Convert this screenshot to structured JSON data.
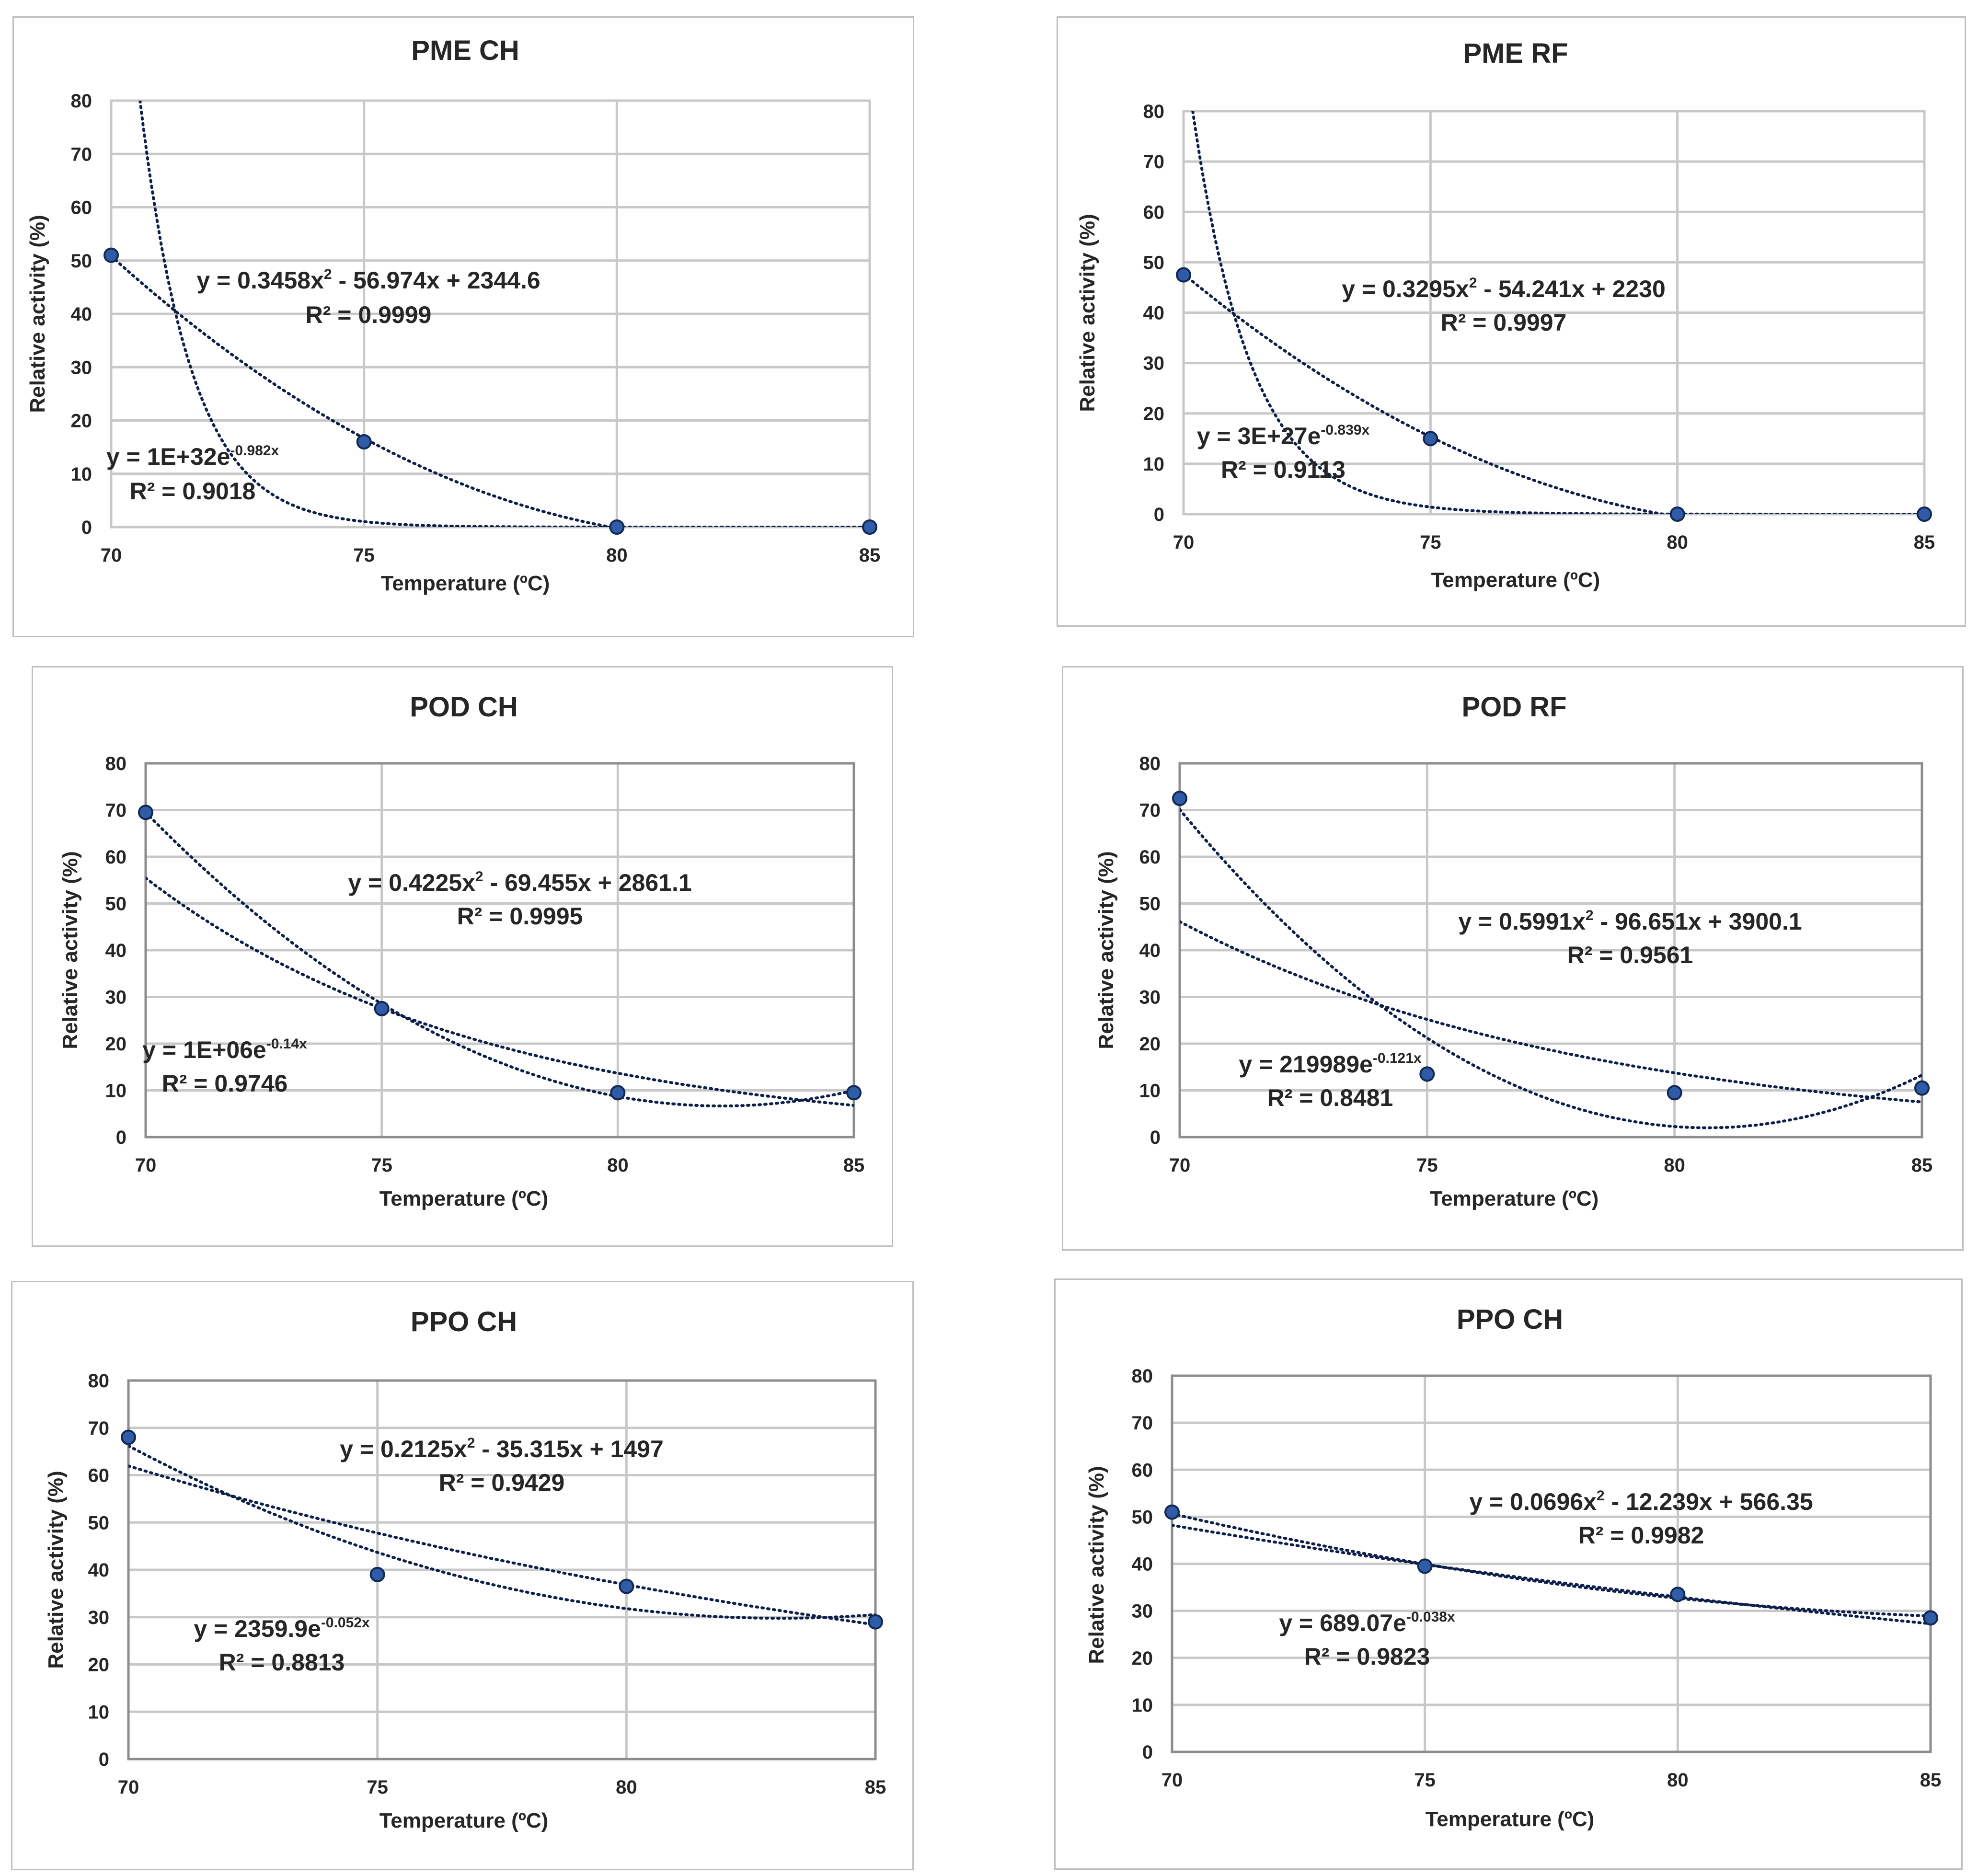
{
  "chart_data": [
    {
      "type": "scatter",
      "title": "PME CH",
      "xlabel": "Temperature (ºC)",
      "ylabel": "Relative activity (%)",
      "xlim": [
        70,
        85
      ],
      "ylim": [
        0,
        80
      ],
      "x_ticks": [
        "70",
        "75",
        "80",
        "85"
      ],
      "y_ticks": [
        "0",
        "10",
        "20",
        "30",
        "40",
        "50",
        "60",
        "70",
        "80"
      ],
      "grid": true,
      "series": [
        {
          "name": "PME CH",
          "x": [
            70,
            75,
            80,
            85
          ],
          "y": [
            51,
            16,
            0,
            0
          ]
        }
      ],
      "trendlines": [
        {
          "kind": "poly",
          "coef": [
            0.3458,
            -56.974,
            2344.6
          ],
          "eq_text": [
            "y = 0.3458x",
            "2",
            " - 56.974x + 2344.6"
          ],
          "r2_text": "R² = 0.9999"
        },
        {
          "kind": "exp",
          "a": 1e+32,
          "b": -0.982,
          "eq_text": [
            "y = 1E+32e",
            "-0.982x",
            ""
          ],
          "r2_text": "R² = 0.9018"
        }
      ]
    },
    {
      "type": "scatter",
      "title": "PME RF",
      "xlabel": "Temperature (ºC)",
      "ylabel": "Relative activity (%)",
      "xlim": [
        70,
        85
      ],
      "ylim": [
        0,
        80
      ],
      "x_ticks": [
        "70",
        "75",
        "80",
        "85"
      ],
      "y_ticks": [
        "0",
        "10",
        "20",
        "30",
        "40",
        "50",
        "60",
        "70",
        "80"
      ],
      "grid": true,
      "series": [
        {
          "name": "PME RF",
          "x": [
            70,
            75,
            80,
            85
          ],
          "y": [
            47.5,
            15,
            0,
            0
          ]
        }
      ],
      "trendlines": [
        {
          "kind": "poly",
          "coef": [
            0.3295,
            -54.241,
            2230
          ],
          "eq_text": [
            "y = 0.3295x",
            "2",
            " - 54.241x + 2230"
          ],
          "r2_text": "R² = 0.9997"
        },
        {
          "kind": "exp",
          "a": 3e+27,
          "b": -0.839,
          "eq_text": [
            "y = 3E+27e",
            "-0.839x",
            ""
          ],
          "r2_text": "R² = 0.9113"
        }
      ]
    },
    {
      "type": "scatter",
      "title": "POD CH",
      "xlabel": "Temperature (ºC)",
      "ylabel": "Relative activity (%)",
      "xlim": [
        70,
        85
      ],
      "ylim": [
        0,
        80
      ],
      "x_ticks": [
        "70",
        "75",
        "80",
        "85"
      ],
      "y_ticks": [
        "0",
        "10",
        "20",
        "30",
        "40",
        "50",
        "60",
        "70",
        "80"
      ],
      "grid": true,
      "series": [
        {
          "name": "POD CH",
          "x": [
            70,
            75,
            80,
            85
          ],
          "y": [
            69.5,
            27.5,
            9.5,
            9.5
          ]
        }
      ],
      "trendlines": [
        {
          "kind": "poly",
          "coef": [
            0.4225,
            -69.455,
            2861.1
          ],
          "eq_text": [
            "y = 0.4225x",
            "2",
            " - 69.455x + 2861.1"
          ],
          "r2_text": "R² = 0.9995"
        },
        {
          "kind": "exp",
          "a": 1000000.0,
          "b": -0.14,
          "eq_text": [
            "y = 1E+06e",
            "-0.14x",
            ""
          ],
          "r2_text": "R² = 0.9746"
        }
      ]
    },
    {
      "type": "scatter",
      "title": "POD RF",
      "xlabel": "Temperature (ºC)",
      "ylabel": "Relative activity (%)",
      "xlim": [
        70,
        85
      ],
      "ylim": [
        0,
        80
      ],
      "x_ticks": [
        "70",
        "75",
        "80",
        "85"
      ],
      "y_ticks": [
        "0",
        "10",
        "20",
        "30",
        "40",
        "50",
        "60",
        "70",
        "80"
      ],
      "grid": true,
      "series": [
        {
          "name": "POD RF",
          "x": [
            70,
            75,
            80,
            85
          ],
          "y": [
            72.5,
            13.5,
            9.5,
            10.5
          ]
        }
      ],
      "trendlines": [
        {
          "kind": "poly",
          "coef": [
            0.5991,
            -96.651,
            3900.1
          ],
          "eq_text": [
            "y = 0.5991x",
            "2",
            " - 96.651x + 3900.1"
          ],
          "r2_text": "R² = 0.9561"
        },
        {
          "kind": "exp",
          "a": 219989,
          "b": -0.121,
          "eq_text": [
            "y = 219989e",
            "-0.121x",
            ""
          ],
          "r2_text": "R² = 0.8481"
        }
      ]
    },
    {
      "type": "scatter",
      "title": "PPO CH",
      "xlabel": "Temperature (ºC)",
      "ylabel": "Relative activity (%)",
      "xlim": [
        70,
        85
      ],
      "ylim": [
        0,
        80
      ],
      "x_ticks": [
        "70",
        "75",
        "80",
        "85"
      ],
      "y_ticks": [
        "0",
        "10",
        "20",
        "30",
        "40",
        "50",
        "60",
        "70",
        "80"
      ],
      "grid": true,
      "series": [
        {
          "name": "PPO CH",
          "x": [
            70,
            75,
            80,
            85
          ],
          "y": [
            68,
            39,
            36.5,
            29
          ]
        }
      ],
      "trendlines": [
        {
          "kind": "poly",
          "coef": [
            0.2125,
            -35.315,
            1497
          ],
          "eq_text": [
            "y = 0.2125x",
            "2",
            " - 35.315x + 1497"
          ],
          "r2_text": "R² = 0.9429"
        },
        {
          "kind": "exp",
          "a": 2359.9,
          "b": -0.052,
          "eq_text": [
            "y = 2359.9e",
            "-0.052x",
            ""
          ],
          "r2_text": "R² = 0.8813"
        }
      ]
    },
    {
      "type": "scatter",
      "title": "PPO CH",
      "xlabel": "Temperature (ºC)",
      "ylabel": "Relative activity (%)",
      "xlim": [
        70,
        85
      ],
      "ylim": [
        0,
        80
      ],
      "x_ticks": [
        "70",
        "75",
        "80",
        "85"
      ],
      "y_ticks": [
        "0",
        "10",
        "20",
        "30",
        "40",
        "50",
        "60",
        "70",
        "80"
      ],
      "grid": true,
      "series": [
        {
          "name": "PPO CH",
          "x": [
            70,
            75,
            80,
            85
          ],
          "y": [
            51,
            39.5,
            33.5,
            28.5
          ]
        }
      ],
      "trendlines": [
        {
          "kind": "poly",
          "coef": [
            0.0696,
            -12.239,
            566.35
          ],
          "eq_text": [
            "y = 0.0696x",
            "2",
            " - 12.239x + 566.35"
          ],
          "r2_text": "R² = 0.9982"
        },
        {
          "kind": "exp",
          "a": 689.07,
          "b": -0.038,
          "eq_text": [
            "y = 689.07e",
            "-0.038x",
            ""
          ],
          "r2_text": "R² = 0.9823"
        }
      ]
    }
  ]
}
